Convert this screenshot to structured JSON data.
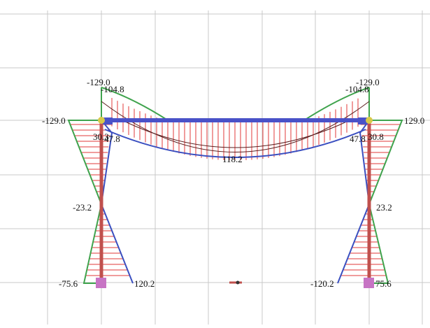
{
  "colors": {
    "grid": "#c8c8c8",
    "member": "#c0504d",
    "beam": "#4a52c8",
    "envelope_max": "#3a4fc0",
    "envelope_min": "#3fa34d",
    "hatch": "#e03a3a",
    "joint": "#d8c94a",
    "support": "#c774c4",
    "text": "#111111"
  },
  "labels": {
    "left_col_top_neg": "-129.0",
    "left_col_top_2": "-104.8",
    "left_beam_end": "-129.0",
    "left_col_mid_a": "30.3",
    "left_col_mid_b": "47.8",
    "left_col_inflection": "-23.2",
    "left_base_min": "-75.6",
    "left_base_max": "120.2",
    "beam_midspan": "118.2",
    "right_col_top_neg": "-129.0",
    "right_col_top_2": "-104.8",
    "right_beam_end": "129.0",
    "right_col_mid_a": "47.8",
    "right_col_mid_b": "30.8",
    "right_col_inflection": "23.2",
    "right_base_min": "-120.2",
    "right_base_max": "75.6"
  },
  "icons": {
    "support": "fixed-support-square",
    "joint": "node-dot",
    "cursor": "pan-cursor-marker"
  }
}
